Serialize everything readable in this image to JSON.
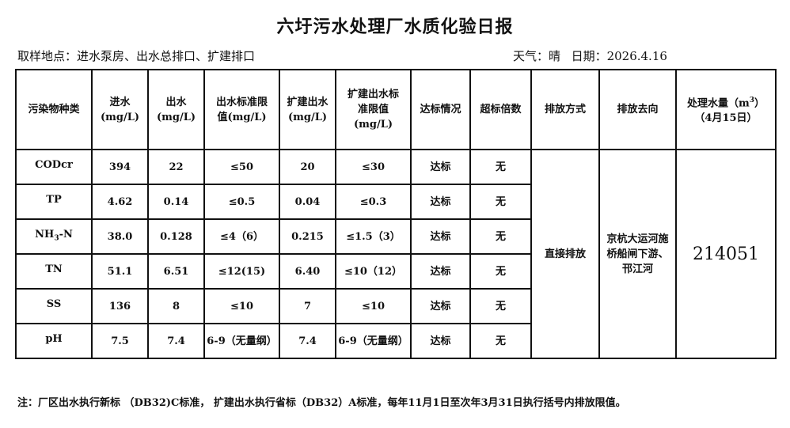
{
  "title": "六圩污水处理厂水质化验日报",
  "sampling_location": "取样地点：进水泵房、出水总排口、扩建排口",
  "weather": "天气：晴",
  "date": "日期：2026.4.16",
  "table": {
    "headers": {
      "pollutant": "污染物种类",
      "influent": "进水\n(mg/L)",
      "effluent": "出水\n(mg/L)",
      "effluent_limit": "出水标准限\n值(mg/L)",
      "expansion_effluent": "扩建出水\n(mg/L)",
      "expansion_limit": "扩建出水标\n准限值\n(mg/L)",
      "compliance": "达标情况",
      "exceed_multiple": "超标倍数",
      "discharge_method": "排放方式",
      "discharge_destination": "排放去向",
      "volume_pre": "处理水量（m",
      "volume_sup": "3",
      "volume_post": "）",
      "volume_date": "（4月15日）"
    },
    "rows": [
      {
        "name": "CODcr",
        "sub": "",
        "post": "",
        "influent": "394",
        "effluent": "22",
        "effluent_limit": "≤50",
        "expansion_effluent": "20",
        "expansion_limit": "≤30",
        "compliance": "达标",
        "exceed": "无"
      },
      {
        "name": "TP",
        "sub": "",
        "post": "",
        "influent": "4.62",
        "effluent": "0.14",
        "effluent_limit": "≤0.5",
        "expansion_effluent": "0.04",
        "expansion_limit": "≤0.3",
        "compliance": "达标",
        "exceed": "无"
      },
      {
        "name": "NH",
        "sub": "3",
        "post": "-N",
        "influent": "38.0",
        "effluent": "0.128",
        "effluent_limit": "≤4（6）",
        "expansion_effluent": "0.215",
        "expansion_limit": "≤1.5（3）",
        "compliance": "达标",
        "exceed": "无"
      },
      {
        "name": "TN",
        "sub": "",
        "post": "",
        "influent": "51.1",
        "effluent": "6.51",
        "effluent_limit": "≤12(15)",
        "expansion_effluent": "6.40",
        "expansion_limit": "≤10（12）",
        "compliance": "达标",
        "exceed": "无"
      },
      {
        "name": "SS",
        "sub": "",
        "post": "",
        "influent": "136",
        "effluent": "8",
        "effluent_limit": "≤10",
        "expansion_effluent": "7",
        "expansion_limit": "≤10",
        "compliance": "达标",
        "exceed": "无"
      },
      {
        "name": "pH",
        "sub": "",
        "post": "",
        "influent": "7.5",
        "effluent": "7.4",
        "effluent_limit": "6-9（无量纲）",
        "expansion_effluent": "7.4",
        "expansion_limit": "6-9（无量纲）",
        "compliance": "达标",
        "exceed": "无"
      }
    ],
    "discharge_method": "直接排放",
    "discharge_destination": "京杭大运河施桥船闸下游、邗江河",
    "treated_volume": "214051"
  },
  "note": "注：厂区出水执行新标 （DB32)C标准， 扩建出水执行省标（DB32）A标准，每年11月1日至次年3月31日执行括号内排放限值。"
}
